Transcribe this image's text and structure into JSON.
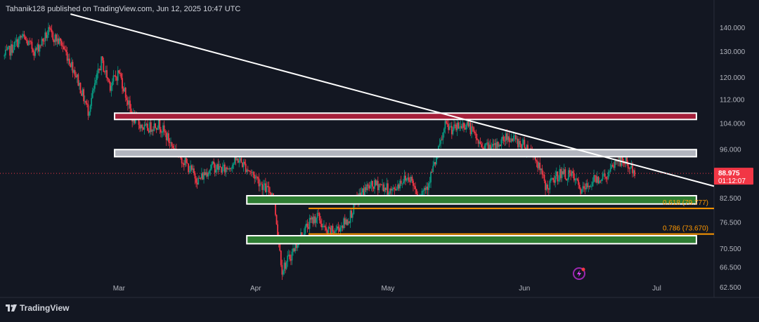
{
  "header": {
    "published_text": "Tahanik128 published on TradingView.com, Jun 12, 2025 10:47 UTC"
  },
  "footer": {
    "brand": "TradingView"
  },
  "colors": {
    "background": "#131722",
    "bull_candle": "#089981",
    "bear_candle": "#f23645",
    "resistance_zone": "#a51f3a",
    "neutral_zone": "#b2b5be",
    "support_zone": "#2e7d32",
    "fib_line": "#ff9800",
    "price_label": "#f23645",
    "trendline": "#ffffff"
  },
  "chart_data": {
    "type": "candlestick",
    "y_scale": "log",
    "ylim": [
      60.5,
      146
    ],
    "y_ticks": [
      "140.000",
      "130.000",
      "120.000",
      "112.000",
      "104.000",
      "96.000",
      "82.500",
      "76.500",
      "70.500",
      "66.500",
      "62.500"
    ],
    "x_ticks": [
      "Mar",
      "Apr",
      "May",
      "Jun",
      "Jul"
    ],
    "x_range": [
      "2025-02-02",
      "2025-07-14"
    ],
    "last_price": {
      "value": "88.975",
      "countdown": "01:12:07"
    },
    "series": [
      {
        "name": "",
        "close_path": [
          [
            "2025-02-03",
            128
          ],
          [
            "2025-02-07",
            136
          ],
          [
            "2025-02-10",
            130
          ],
          [
            "2025-02-13",
            138
          ],
          [
            "2025-02-16",
            133
          ],
          [
            "2025-02-19",
            122
          ],
          [
            "2025-02-22",
            108
          ],
          [
            "2025-02-25",
            126
          ],
          [
            "2025-02-27",
            117
          ],
          [
            "2025-03-01",
            122
          ],
          [
            "2025-03-04",
            106
          ],
          [
            "2025-03-07",
            102
          ],
          [
            "2025-03-10",
            104
          ],
          [
            "2025-03-13",
            97
          ],
          [
            "2025-03-16",
            92
          ],
          [
            "2025-03-19",
            87
          ],
          [
            "2025-03-22",
            91
          ],
          [
            "2025-03-25",
            90
          ],
          [
            "2025-03-28",
            93
          ],
          [
            "2025-04-01",
            88
          ],
          [
            "2025-04-03",
            85
          ],
          [
            "2025-04-05",
            83.5
          ],
          [
            "2025-04-07",
            66
          ],
          [
            "2025-04-09",
            69
          ],
          [
            "2025-04-11",
            73
          ],
          [
            "2025-04-13",
            76
          ],
          [
            "2025-04-15",
            78
          ],
          [
            "2025-04-17",
            74
          ],
          [
            "2025-04-19",
            74.5
          ],
          [
            "2025-04-22",
            77
          ],
          [
            "2025-04-24",
            82
          ],
          [
            "2025-04-26",
            85
          ],
          [
            "2025-04-29",
            86
          ],
          [
            "2025-05-02",
            84
          ],
          [
            "2025-05-04",
            87
          ],
          [
            "2025-05-06",
            88
          ],
          [
            "2025-05-08",
            83
          ],
          [
            "2025-05-10",
            86
          ],
          [
            "2025-05-12",
            93
          ],
          [
            "2025-05-14",
            103
          ],
          [
            "2025-05-16",
            102
          ],
          [
            "2025-05-19",
            104
          ],
          [
            "2025-05-22",
            97
          ],
          [
            "2025-05-25",
            96
          ],
          [
            "2025-05-28",
            100
          ],
          [
            "2025-06-01",
            97
          ],
          [
            "2025-06-03",
            95
          ],
          [
            "2025-06-06",
            85
          ],
          [
            "2025-06-09",
            89
          ],
          [
            "2025-06-12",
            88
          ],
          [
            "2025-06-14",
            84
          ],
          [
            "2025-06-17",
            87.5
          ],
          [
            "2025-06-20",
            88.5
          ],
          [
            "2025-06-22",
            93
          ],
          [
            "2025-06-24",
            92
          ],
          [
            "2025-06-26",
            88.975
          ]
        ]
      }
    ],
    "zones": [
      {
        "name": "resistance-zone",
        "from": "2025-02-28",
        "to": "2025-07-10",
        "low": 105.2,
        "high": 107.3
      },
      {
        "name": "neutral-zone",
        "from": "2025-02-28",
        "to": "2025-07-10",
        "low": 93.7,
        "high": 95.8
      },
      {
        "name": "upper-support-zone",
        "from": "2025-03-30",
        "to": "2025-07-10",
        "low": 80.9,
        "high": 83.0
      },
      {
        "name": "lower-support-zone",
        "from": "2025-03-30",
        "to": "2025-07-10",
        "low": 71.5,
        "high": 73.3
      }
    ],
    "fib_levels": [
      {
        "label": "0.618 (79.777)",
        "value": 79.777,
        "from": "2025-04-13"
      },
      {
        "label": "0.786 (73.670)",
        "value": 73.67,
        "from": "2025-04-13"
      }
    ],
    "trendline": {
      "start": [
        "2025-02-18",
        146
      ],
      "end": [
        "2025-07-14",
        85.5
      ]
    }
  }
}
